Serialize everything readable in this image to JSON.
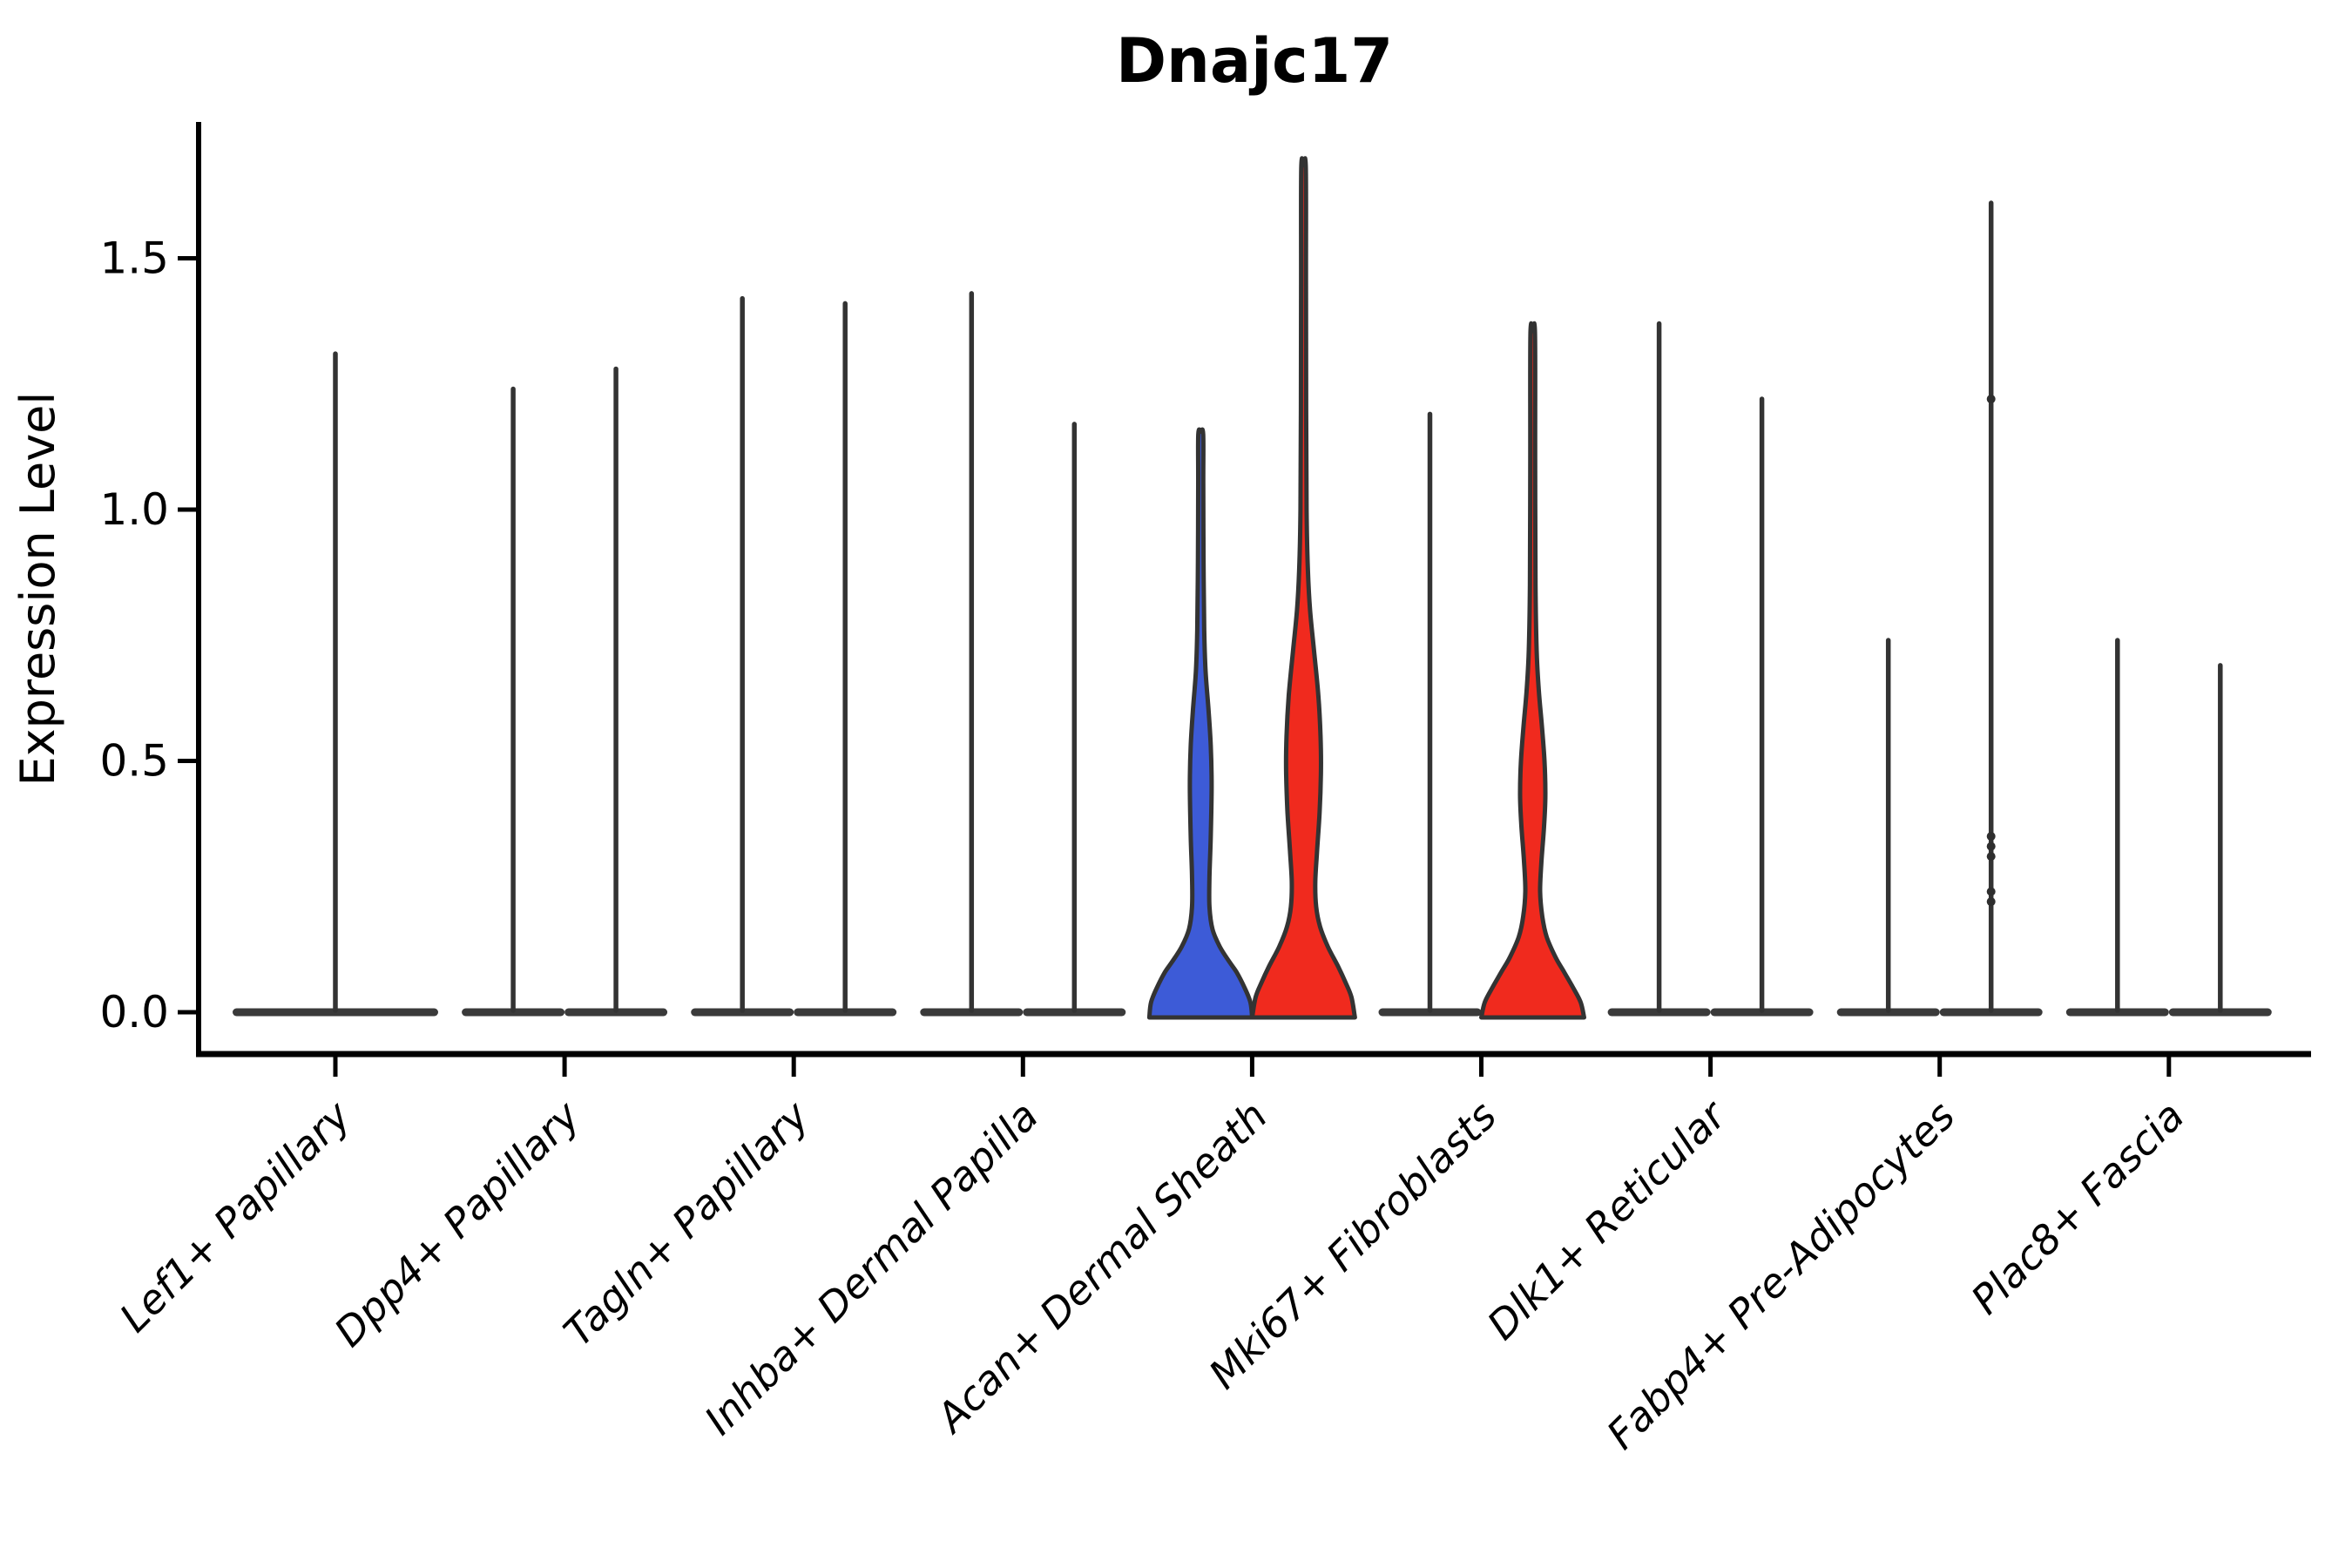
{
  "title": "Dnajc17",
  "chart_data": {
    "type": "violin",
    "title": "Dnajc17",
    "xlabel": "",
    "ylabel": "Expression Level",
    "y_ticks": [
      "0.0",
      "0.5",
      "1.0",
      "1.5"
    ],
    "y_tick_values": [
      0.0,
      0.5,
      1.0,
      1.5
    ],
    "ylim": [
      -0.08,
      1.77
    ],
    "grid": false,
    "legend": "none",
    "colors": {
      "violin_blue": "#3D5BD7",
      "violin_red": "#F02A1E",
      "outline": "#333333",
      "flat_bar": "#3A3A3A",
      "spike": "#333333",
      "axis": "#000000",
      "dot": "#2E2E2E",
      "text": "#000000"
    },
    "categories": [
      {
        "label": "Lef1+ Papillary",
        "violins": [
          {
            "pos": "center",
            "kind": "flat-spike",
            "max": 1.31,
            "width_factor": 2
          }
        ]
      },
      {
        "label": "Dpp4+ Papillary",
        "violins": [
          {
            "pos": "left",
            "kind": "flat-spike",
            "max": 1.24
          },
          {
            "pos": "right",
            "kind": "flat-spike",
            "max": 1.28
          }
        ]
      },
      {
        "label": "Tagln+ Papillary",
        "violins": [
          {
            "pos": "left",
            "kind": "flat-spike",
            "max": 1.42
          },
          {
            "pos": "right",
            "kind": "flat-spike",
            "max": 1.41
          }
        ]
      },
      {
        "label": "Inhba+ Dermal Papilla",
        "violins": [
          {
            "pos": "left",
            "kind": "flat-spike",
            "max": 1.43
          },
          {
            "pos": "right",
            "kind": "flat-spike",
            "max": 1.17
          }
        ]
      },
      {
        "label": "Acan+ Dermal Sheath",
        "violins": [
          {
            "pos": "left",
            "kind": "shaped",
            "fill": "#3D5BD7",
            "max": 1.15,
            "profile": [
              [
                0,
                59
              ],
              [
                0.02,
                57
              ],
              [
                0.05,
                50
              ],
              [
                0.08,
                41
              ],
              [
                0.1,
                33
              ],
              [
                0.13,
                22
              ],
              [
                0.165,
                13.5
              ],
              [
                0.21,
                10
              ],
              [
                0.27,
                10
              ],
              [
                0.35,
                11.5
              ],
              [
                0.45,
                12.5
              ],
              [
                0.53,
                11.5
              ],
              [
                0.6,
                9
              ],
              [
                0.68,
                5.5
              ],
              [
                0.76,
                4
              ],
              [
                0.9,
                3.2
              ],
              [
                1.05,
                2.9
              ],
              [
                1.15,
                2.8
              ]
            ]
          },
          {
            "pos": "right",
            "kind": "shaped",
            "fill": "#F02A1E",
            "max": 1.68,
            "profile": [
              [
                0,
                59
              ],
              [
                0.03,
                55
              ],
              [
                0.06,
                48
              ],
              [
                0.09,
                40
              ],
              [
                0.13,
                28
              ],
              [
                0.17,
                19
              ],
              [
                0.21,
                14.5
              ],
              [
                0.26,
                13.5
              ],
              [
                0.32,
                15.5
              ],
              [
                0.4,
                18.5
              ],
              [
                0.48,
                20
              ],
              [
                0.55,
                19.5
              ],
              [
                0.63,
                17
              ],
              [
                0.72,
                12
              ],
              [
                0.8,
                7.5
              ],
              [
                0.88,
                5
              ],
              [
                1.0,
                3.5
              ],
              [
                1.2,
                3
              ],
              [
                1.45,
                2.8
              ],
              [
                1.68,
                2.6
              ]
            ]
          }
        ]
      },
      {
        "label": "Mki67+ Fibroblasts",
        "violins": [
          {
            "pos": "left",
            "kind": "flat-spike",
            "max": 1.19
          },
          {
            "pos": "right",
            "kind": "shaped",
            "fill": "#F02A1E",
            "max": 1.35,
            "profile": [
              [
                0,
                59
              ],
              [
                0.02,
                55
              ],
              [
                0.05,
                46
              ],
              [
                0.08,
                36
              ],
              [
                0.11,
                26
              ],
              [
                0.15,
                16
              ],
              [
                0.19,
                11
              ],
              [
                0.24,
                8.5
              ],
              [
                0.3,
                10
              ],
              [
                0.37,
                13
              ],
              [
                0.43,
                14.5
              ],
              [
                0.5,
                13.5
              ],
              [
                0.57,
                10.5
              ],
              [
                0.64,
                7
              ],
              [
                0.72,
                4.5
              ],
              [
                0.85,
                3.2
              ],
              [
                1.1,
                2.8
              ],
              [
                1.35,
                2.6
              ]
            ]
          }
        ]
      },
      {
        "label": "Dlk1+ Reticular",
        "violins": [
          {
            "pos": "left",
            "kind": "flat-spike",
            "max": 1.37
          },
          {
            "pos": "right",
            "kind": "flat-spike",
            "max": 1.22
          }
        ]
      },
      {
        "label": "Fabp4+ Pre-Adipocytes",
        "violins": [
          {
            "pos": "left",
            "kind": "flat-spike",
            "max": 0.74
          },
          {
            "pos": "right",
            "kind": "flat-spike",
            "max": 1.61,
            "points": [
              1.22,
              0.35,
              0.33,
              0.31,
              0.24,
              0.22
            ]
          }
        ]
      },
      {
        "label": "Plac8+ Fascia",
        "violins": [
          {
            "pos": "left",
            "kind": "flat-spike",
            "max": 0.74
          },
          {
            "pos": "right",
            "kind": "flat-spike",
            "max": 0.69
          }
        ]
      }
    ]
  }
}
